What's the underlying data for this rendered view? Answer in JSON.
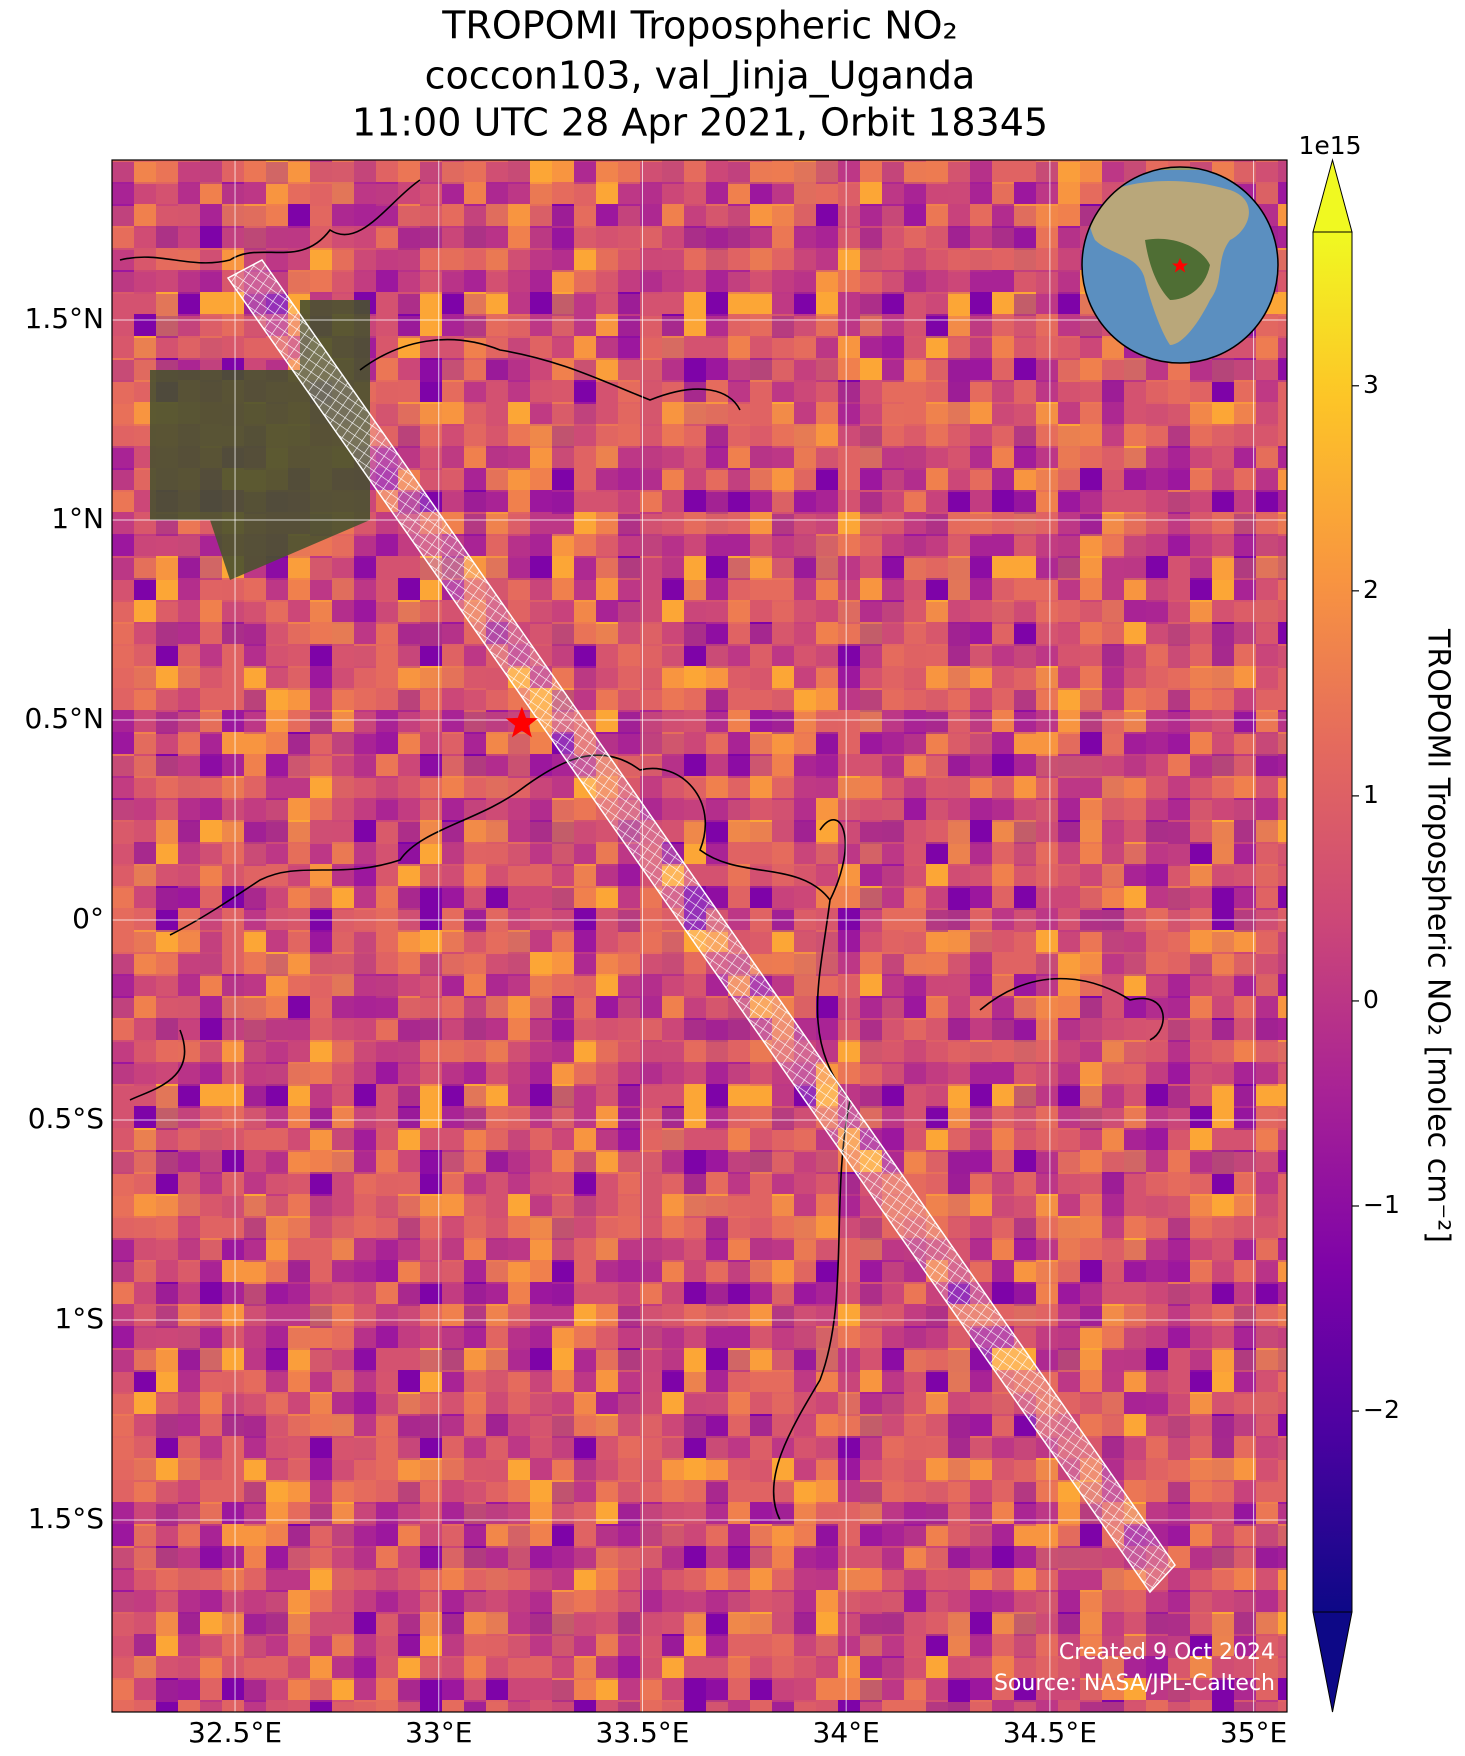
{
  "chart_data": {
    "type": "map",
    "title": [
      "TROPOMI Tropospheric NO₂",
      "coccon103, val_Jinja_Uganda",
      "11:00 UTC 28 Apr 2021, Orbit 18345"
    ],
    "xlim": [
      32.198,
      35.082
    ],
    "ylim": [
      -1.98,
      1.9
    ],
    "xticks": [
      {
        "value": 32.5,
        "label": "32.5°E"
      },
      {
        "value": 33,
        "label": "33°E"
      },
      {
        "value": 33.5,
        "label": "33.5°E"
      },
      {
        "value": 34,
        "label": "34°E"
      },
      {
        "value": 34.5,
        "label": "34.5°E"
      },
      {
        "value": 35,
        "label": "35°E"
      }
    ],
    "yticks": [
      {
        "value": 1.5,
        "label": "1.5°N"
      },
      {
        "value": 1,
        "label": "1°N"
      },
      {
        "value": 0.5,
        "label": "0.5°N"
      },
      {
        "value": 0,
        "label": "0°"
      },
      {
        "value": -0.5,
        "label": "0.5°S"
      },
      {
        "value": -1,
        "label": "1°S"
      },
      {
        "value": -1.5,
        "label": "1.5°S"
      }
    ],
    "grid": true,
    "site": {
      "lon": 33.204,
      "lat": 0.491,
      "color": "#ff0000"
    },
    "colorbar": {
      "label": "TROPOMI Tropospheric NO₂ [molec cm⁻²]",
      "offset": "1e15",
      "lim": [
        -2.98,
        3.75
      ],
      "ticks": [
        3,
        2,
        1,
        0,
        {
          "value": -1,
          "label": "−1"
        },
        {
          "value": -2,
          "label": "−2"
        }
      ]
    },
    "annotations": [
      "Created 9 Oct 2024",
      "Source: NASA/JPL-Caltech"
    ]
  }
}
